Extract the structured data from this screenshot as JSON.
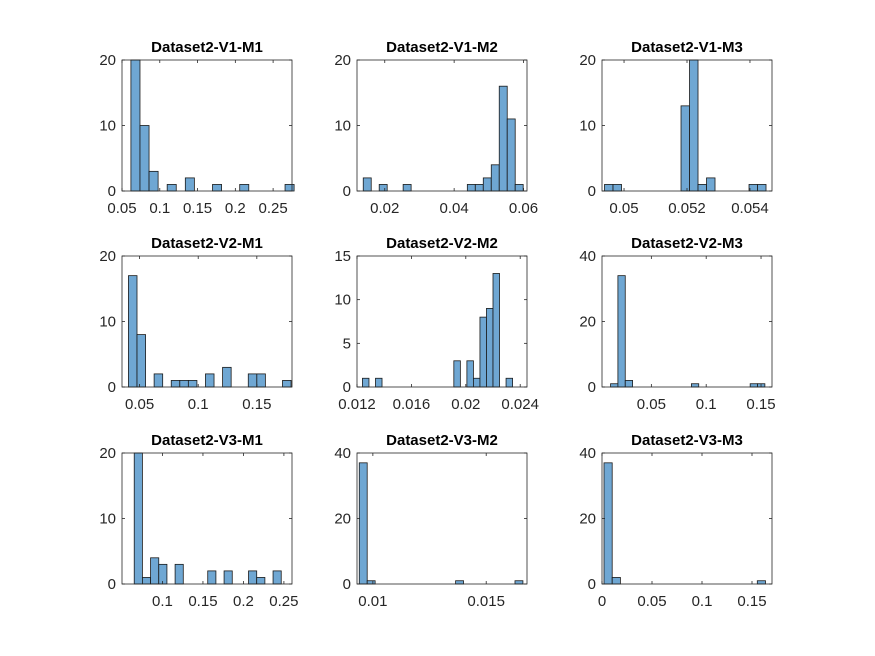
{
  "bar_color": "#6fa7d3",
  "chart_data": [
    {
      "type": "bar",
      "title": "Dataset2-V1-M1",
      "xlim": [
        0.05,
        0.275
      ],
      "ylim": [
        0,
        20
      ],
      "xticks": [
        0.05,
        0.1,
        0.15,
        0.2,
        0.25
      ],
      "xtick_labels": [
        "0.05",
        "0.1",
        "0.15",
        "0.2",
        "0.25"
      ],
      "yticks": [
        0,
        10,
        20
      ],
      "ytick_labels": [
        "0",
        "10",
        "20"
      ],
      "bins": [
        {
          "x0": 0.0618,
          "x1": 0.0738,
          "value": 21
        },
        {
          "x0": 0.0738,
          "x1": 0.0858,
          "value": 10
        },
        {
          "x0": 0.0858,
          "x1": 0.0978,
          "value": 3
        },
        {
          "x0": 0.1098,
          "x1": 0.1218,
          "value": 1
        },
        {
          "x0": 0.1338,
          "x1": 0.1458,
          "value": 2
        },
        {
          "x0": 0.1698,
          "x1": 0.1818,
          "value": 1
        },
        {
          "x0": 0.2058,
          "x1": 0.2178,
          "value": 1
        },
        {
          "x0": 0.2658,
          "x1": 0.2778,
          "value": 1
        }
      ]
    },
    {
      "type": "bar",
      "title": "Dataset2-V1-M2",
      "xlim": [
        0.012,
        0.061
      ],
      "ylim": [
        0,
        20
      ],
      "xticks": [
        0.02,
        0.04,
        0.06
      ],
      "xtick_labels": [
        "0.02",
        "0.04",
        "0.06"
      ],
      "yticks": [
        0,
        10,
        20
      ],
      "ytick_labels": [
        "0",
        "10",
        "20"
      ],
      "bins": [
        {
          "x0": 0.0138,
          "x1": 0.0161,
          "value": 2
        },
        {
          "x0": 0.0184,
          "x1": 0.0207,
          "value": 1
        },
        {
          "x0": 0.0253,
          "x1": 0.0276,
          "value": 1
        },
        {
          "x0": 0.0438,
          "x1": 0.0461,
          "value": 1
        },
        {
          "x0": 0.0461,
          "x1": 0.0484,
          "value": 1
        },
        {
          "x0": 0.0484,
          "x1": 0.0507,
          "value": 2
        },
        {
          "x0": 0.0507,
          "x1": 0.053,
          "value": 4
        },
        {
          "x0": 0.053,
          "x1": 0.0553,
          "value": 16
        },
        {
          "x0": 0.0553,
          "x1": 0.0576,
          "value": 11
        },
        {
          "x0": 0.0576,
          "x1": 0.0599,
          "value": 1
        }
      ]
    },
    {
      "type": "bar",
      "title": "Dataset2-V1-M3",
      "xlim": [
        0.0493,
        0.0547
      ],
      "ylim": [
        0,
        20
      ],
      "xticks": [
        0.05,
        0.052,
        0.054
      ],
      "xtick_labels": [
        "0.05",
        "0.052",
        "0.054"
      ],
      "yticks": [
        0,
        10,
        20
      ],
      "ytick_labels": [
        "0",
        "10",
        "20"
      ],
      "bins": [
        {
          "x0": 0.04938,
          "x1": 0.04965,
          "value": 1
        },
        {
          "x0": 0.04965,
          "x1": 0.04992,
          "value": 1
        },
        {
          "x0": 0.05181,
          "x1": 0.05208,
          "value": 13
        },
        {
          "x0": 0.05208,
          "x1": 0.05235,
          "value": 20
        },
        {
          "x0": 0.05235,
          "x1": 0.05262,
          "value": 1
        },
        {
          "x0": 0.05262,
          "x1": 0.05289,
          "value": 2
        },
        {
          "x0": 0.05397,
          "x1": 0.05424,
          "value": 1
        },
        {
          "x0": 0.05424,
          "x1": 0.05451,
          "value": 1
        }
      ]
    },
    {
      "type": "bar",
      "title": "Dataset2-V2-M1",
      "xlim": [
        0.035,
        0.18
      ],
      "ylim": [
        0,
        20
      ],
      "xticks": [
        0.05,
        0.1,
        0.15
      ],
      "xtick_labels": [
        "0.05",
        "0.1",
        "0.15"
      ],
      "yticks": [
        0,
        10,
        20
      ],
      "ytick_labels": [
        "0",
        "10",
        "20"
      ],
      "bins": [
        {
          "x0": 0.0405,
          "x1": 0.0478,
          "value": 17
        },
        {
          "x0": 0.0478,
          "x1": 0.0551,
          "value": 8
        },
        {
          "x0": 0.0624,
          "x1": 0.0697,
          "value": 2
        },
        {
          "x0": 0.077,
          "x1": 0.0843,
          "value": 1
        },
        {
          "x0": 0.0843,
          "x1": 0.0916,
          "value": 1
        },
        {
          "x0": 0.0916,
          "x1": 0.0989,
          "value": 1
        },
        {
          "x0": 0.1062,
          "x1": 0.1135,
          "value": 2
        },
        {
          "x0": 0.1208,
          "x1": 0.1281,
          "value": 3
        },
        {
          "x0": 0.1427,
          "x1": 0.15,
          "value": 2
        },
        {
          "x0": 0.15,
          "x1": 0.1573,
          "value": 2
        },
        {
          "x0": 0.1719,
          "x1": 0.1792,
          "value": 1
        }
      ]
    },
    {
      "type": "bar",
      "title": "Dataset2-V2-M2",
      "xlim": [
        0.012,
        0.0245
      ],
      "ylim": [
        0,
        15
      ],
      "xticks": [
        0.012,
        0.016,
        0.02,
        0.024
      ],
      "xtick_labels": [
        "0.012",
        "0.016",
        "0.02",
        "0.024"
      ],
      "yticks": [
        0,
        5,
        10,
        15
      ],
      "ytick_labels": [
        "0",
        "5",
        "10",
        "15"
      ],
      "bins": [
        {
          "x0": 0.0124,
          "x1": 0.01288,
          "value": 1
        },
        {
          "x0": 0.01336,
          "x1": 0.01384,
          "value": 1
        },
        {
          "x0": 0.01912,
          "x1": 0.0196,
          "value": 3
        },
        {
          "x0": 0.02008,
          "x1": 0.02056,
          "value": 3
        },
        {
          "x0": 0.02056,
          "x1": 0.02104,
          "value": 1
        },
        {
          "x0": 0.02104,
          "x1": 0.02152,
          "value": 8
        },
        {
          "x0": 0.02152,
          "x1": 0.022,
          "value": 9
        },
        {
          "x0": 0.022,
          "x1": 0.02248,
          "value": 13
        },
        {
          "x0": 0.02296,
          "x1": 0.02344,
          "value": 1
        }
      ]
    },
    {
      "type": "bar",
      "title": "Dataset2-V2-M3",
      "xlim": [
        0.005,
        0.16
      ],
      "ylim": [
        0,
        40
      ],
      "xticks": [
        0.05,
        0.1,
        0.15
      ],
      "xtick_labels": [
        "0.05",
        "0.1",
        "0.15"
      ],
      "yticks": [
        0,
        20,
        40
      ],
      "ytick_labels": [
        "0",
        "20",
        "40"
      ],
      "bins": [
        {
          "x0": 0.0128,
          "x1": 0.0195,
          "value": 1
        },
        {
          "x0": 0.0195,
          "x1": 0.0262,
          "value": 34
        },
        {
          "x0": 0.0262,
          "x1": 0.0329,
          "value": 2
        },
        {
          "x0": 0.0865,
          "x1": 0.0932,
          "value": 1
        },
        {
          "x0": 0.1401,
          "x1": 0.1468,
          "value": 1
        },
        {
          "x0": 0.1468,
          "x1": 0.1535,
          "value": 1
        }
      ]
    },
    {
      "type": "bar",
      "title": "Dataset2-V3-M1",
      "xlim": [
        0.05,
        0.26
      ],
      "ylim": [
        0,
        20
      ],
      "xticks": [
        0.1,
        0.15,
        0.2,
        0.25
      ],
      "xtick_labels": [
        "0.1",
        "0.15",
        "0.2",
        "0.25"
      ],
      "yticks": [
        0,
        10,
        20
      ],
      "ytick_labels": [
        "0",
        "10",
        "20"
      ],
      "bins": [
        {
          "x0": 0.0651,
          "x1": 0.0752,
          "value": 20
        },
        {
          "x0": 0.0752,
          "x1": 0.0853,
          "value": 1
        },
        {
          "x0": 0.0853,
          "x1": 0.0954,
          "value": 4
        },
        {
          "x0": 0.0954,
          "x1": 0.1055,
          "value": 3
        },
        {
          "x0": 0.1156,
          "x1": 0.1257,
          "value": 3
        },
        {
          "x0": 0.1559,
          "x1": 0.166,
          "value": 2
        },
        {
          "x0": 0.1761,
          "x1": 0.1862,
          "value": 2
        },
        {
          "x0": 0.2063,
          "x1": 0.2164,
          "value": 2
        },
        {
          "x0": 0.2164,
          "x1": 0.2265,
          "value": 1
        },
        {
          "x0": 0.2366,
          "x1": 0.2467,
          "value": 2
        }
      ]
    },
    {
      "type": "bar",
      "title": "Dataset2-V3-M2",
      "xlim": [
        0.0093,
        0.0168
      ],
      "ylim": [
        0,
        40
      ],
      "xticks": [
        0.01,
        0.015
      ],
      "xtick_labels": [
        "0.01",
        "0.015"
      ],
      "yticks": [
        0,
        20,
        40
      ],
      "ytick_labels": [
        "0",
        "20",
        "40"
      ],
      "bins": [
        {
          "x0": 0.0094,
          "x1": 0.00975,
          "value": 37
        },
        {
          "x0": 0.00975,
          "x1": 0.0101,
          "value": 1
        },
        {
          "x0": 0.01365,
          "x1": 0.014,
          "value": 1
        },
        {
          "x0": 0.01627,
          "x1": 0.01662,
          "value": 1
        }
      ]
    },
    {
      "type": "bar",
      "title": "Dataset2-V3-M3",
      "xlim": [
        0,
        0.17
      ],
      "ylim": [
        0,
        40
      ],
      "xticks": [
        0,
        0.05,
        0.1,
        0.15
      ],
      "xtick_labels": [
        "0",
        "0.05",
        "0.1",
        "0.15"
      ],
      "yticks": [
        0,
        20,
        40
      ],
      "ytick_labels": [
        "0",
        "20",
        "40"
      ],
      "bins": [
        {
          "x0": 0.002,
          "x1": 0.0102,
          "value": 37
        },
        {
          "x0": 0.0102,
          "x1": 0.0184,
          "value": 2
        },
        {
          "x0": 0.1553,
          "x1": 0.1635,
          "value": 1
        }
      ]
    }
  ]
}
